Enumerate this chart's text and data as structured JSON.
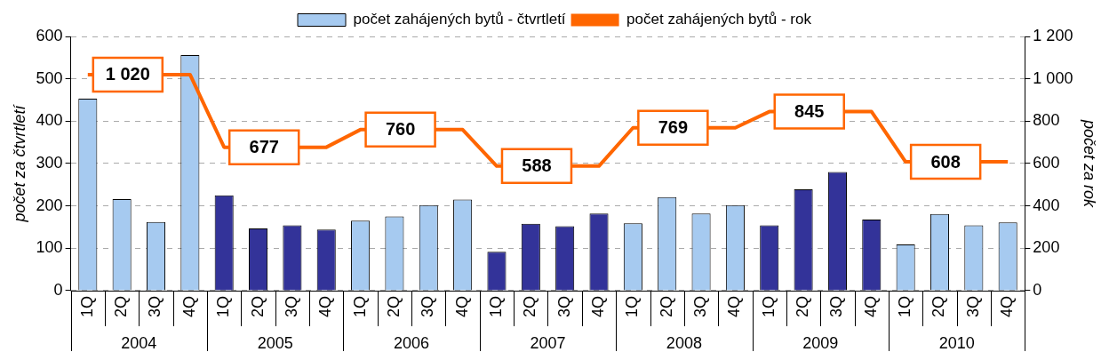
{
  "chart_data": {
    "type": "bar",
    "categories": [
      "1Q",
      "2Q",
      "3Q",
      "4Q",
      "1Q",
      "2Q",
      "3Q",
      "4Q",
      "1Q",
      "2Q",
      "3Q",
      "4Q",
      "1Q",
      "2Q",
      "3Q",
      "4Q",
      "1Q",
      "2Q",
      "3Q",
      "4Q",
      "1Q",
      "2Q",
      "3Q",
      "4Q",
      "1Q",
      "2Q",
      "3Q",
      "4Q"
    ],
    "series": [
      {
        "name": "počet zahájených bytů - čtvrtletí",
        "color": "#a6caf0",
        "colors": [
          "#a6caf0",
          "#a6caf0",
          "#a6caf0",
          "#a6caf0",
          "#333399",
          "#333399",
          "#333399",
          "#333399",
          "#a6caf0",
          "#a6caf0",
          "#a6caf0",
          "#a6caf0",
          "#333399",
          "#333399",
          "#333399",
          "#333399",
          "#a6caf0",
          "#a6caf0",
          "#a6caf0",
          "#a6caf0",
          "#333399",
          "#333399",
          "#333399",
          "#333399",
          "#a6caf0",
          "#a6caf0",
          "#a6caf0",
          "#a6caf0"
        ],
        "values": [
          453,
          216,
          162,
          556,
          225,
          147,
          154,
          144,
          165,
          175,
          202,
          215,
          92,
          158,
          152,
          182,
          159,
          221,
          182,
          202,
          154,
          239,
          280,
          168,
          109,
          181,
          154,
          161
        ]
      },
      {
        "name": "počet zahájených bytů - rok",
        "type": "line",
        "axis": "y2",
        "color": "#ff6600",
        "values": [
          1020,
          null,
          null,
          1020,
          677,
          null,
          null,
          677,
          760,
          null,
          null,
          760,
          588,
          null,
          null,
          588,
          769,
          null,
          null,
          769,
          845,
          null,
          null,
          845,
          608,
          null,
          null,
          608
        ],
        "value_labels": [
          "1 020",
          null,
          null,
          null,
          "677",
          null,
          null,
          null,
          "760",
          null,
          null,
          null,
          "588",
          null,
          null,
          null,
          "769",
          null,
          null,
          null,
          "845",
          null,
          null,
          null,
          "608",
          null,
          null,
          null
        ]
      }
    ],
    "ylabel": "počet za čtvrtletí",
    "y2label": "počet za rok",
    "ylim": [
      0,
      600
    ],
    "yticks": [
      0,
      100,
      200,
      300,
      400,
      500,
      600
    ],
    "y2lim": [
      0,
      1200
    ],
    "y2ticks": [
      0,
      200,
      400,
      600,
      800,
      {
        "value": 1000,
        "label": "1 000"
      },
      {
        "value": 1200,
        "label": "1 200"
      }
    ],
    "annotations": [
      "2004",
      "2005",
      "2006",
      "2007",
      "2008",
      "2009",
      "2010"
    ],
    "grid": "y",
    "legend": "top",
    "marker": "none",
    "line_style": "solid"
  }
}
